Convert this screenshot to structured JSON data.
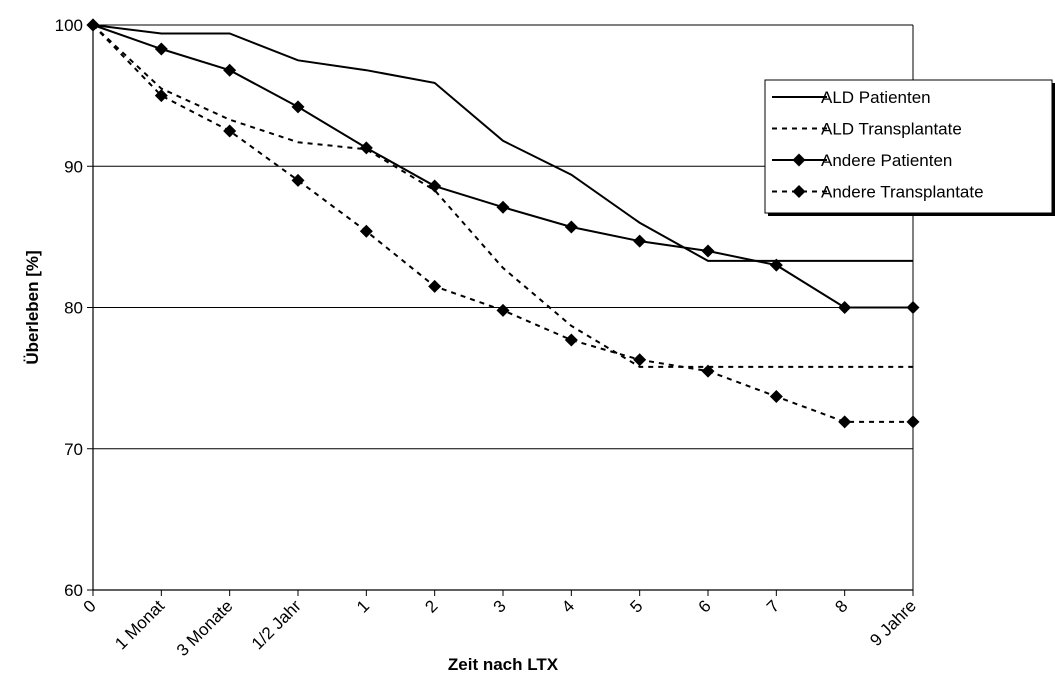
{
  "chart_data": {
    "type": "line",
    "title": "",
    "xlabel": "Zeit nach LTX",
    "ylabel": "Überleben [%]",
    "ylim": [
      60,
      100
    ],
    "yticks": [
      60,
      70,
      80,
      90,
      100
    ],
    "grid": "horizontal",
    "legend_position": "right",
    "categories": [
      "0",
      "1 Monat",
      "3 Monate",
      "1/2 Jahr",
      "1",
      "2",
      "3",
      "4",
      "5",
      "6",
      "7",
      "8",
      "9 Jahre"
    ],
    "series": [
      {
        "name": "ALD Patienten",
        "style": "solid",
        "marker": "none",
        "values": [
          100,
          99.4,
          99.4,
          97.5,
          96.8,
          95.9,
          91.8,
          89.4,
          86.0,
          83.3,
          83.3,
          83.3,
          83.3
        ]
      },
      {
        "name": "ALD Transplantate",
        "style": "dashed",
        "marker": "none",
        "values": [
          100,
          95.5,
          93.3,
          91.7,
          91.2,
          88.3,
          82.8,
          78.7,
          75.8,
          75.8,
          75.8,
          75.8,
          75.8
        ]
      },
      {
        "name": "Andere Patienten",
        "style": "solid",
        "marker": "diamond",
        "values": [
          100,
          98.3,
          96.8,
          94.2,
          91.3,
          88.6,
          87.1,
          85.7,
          84.7,
          84.0,
          83.0,
          80.0,
          80.0
        ]
      },
      {
        "name": "Andere Transplantate",
        "style": "dashed",
        "marker": "diamond",
        "values": [
          100,
          95.0,
          92.5,
          89.0,
          85.4,
          81.5,
          79.8,
          77.7,
          76.3,
          75.5,
          73.7,
          71.9,
          71.9
        ]
      }
    ],
    "colors": {
      "line": "#000000",
      "grid": "#000000",
      "background": "#ffffff"
    }
  }
}
